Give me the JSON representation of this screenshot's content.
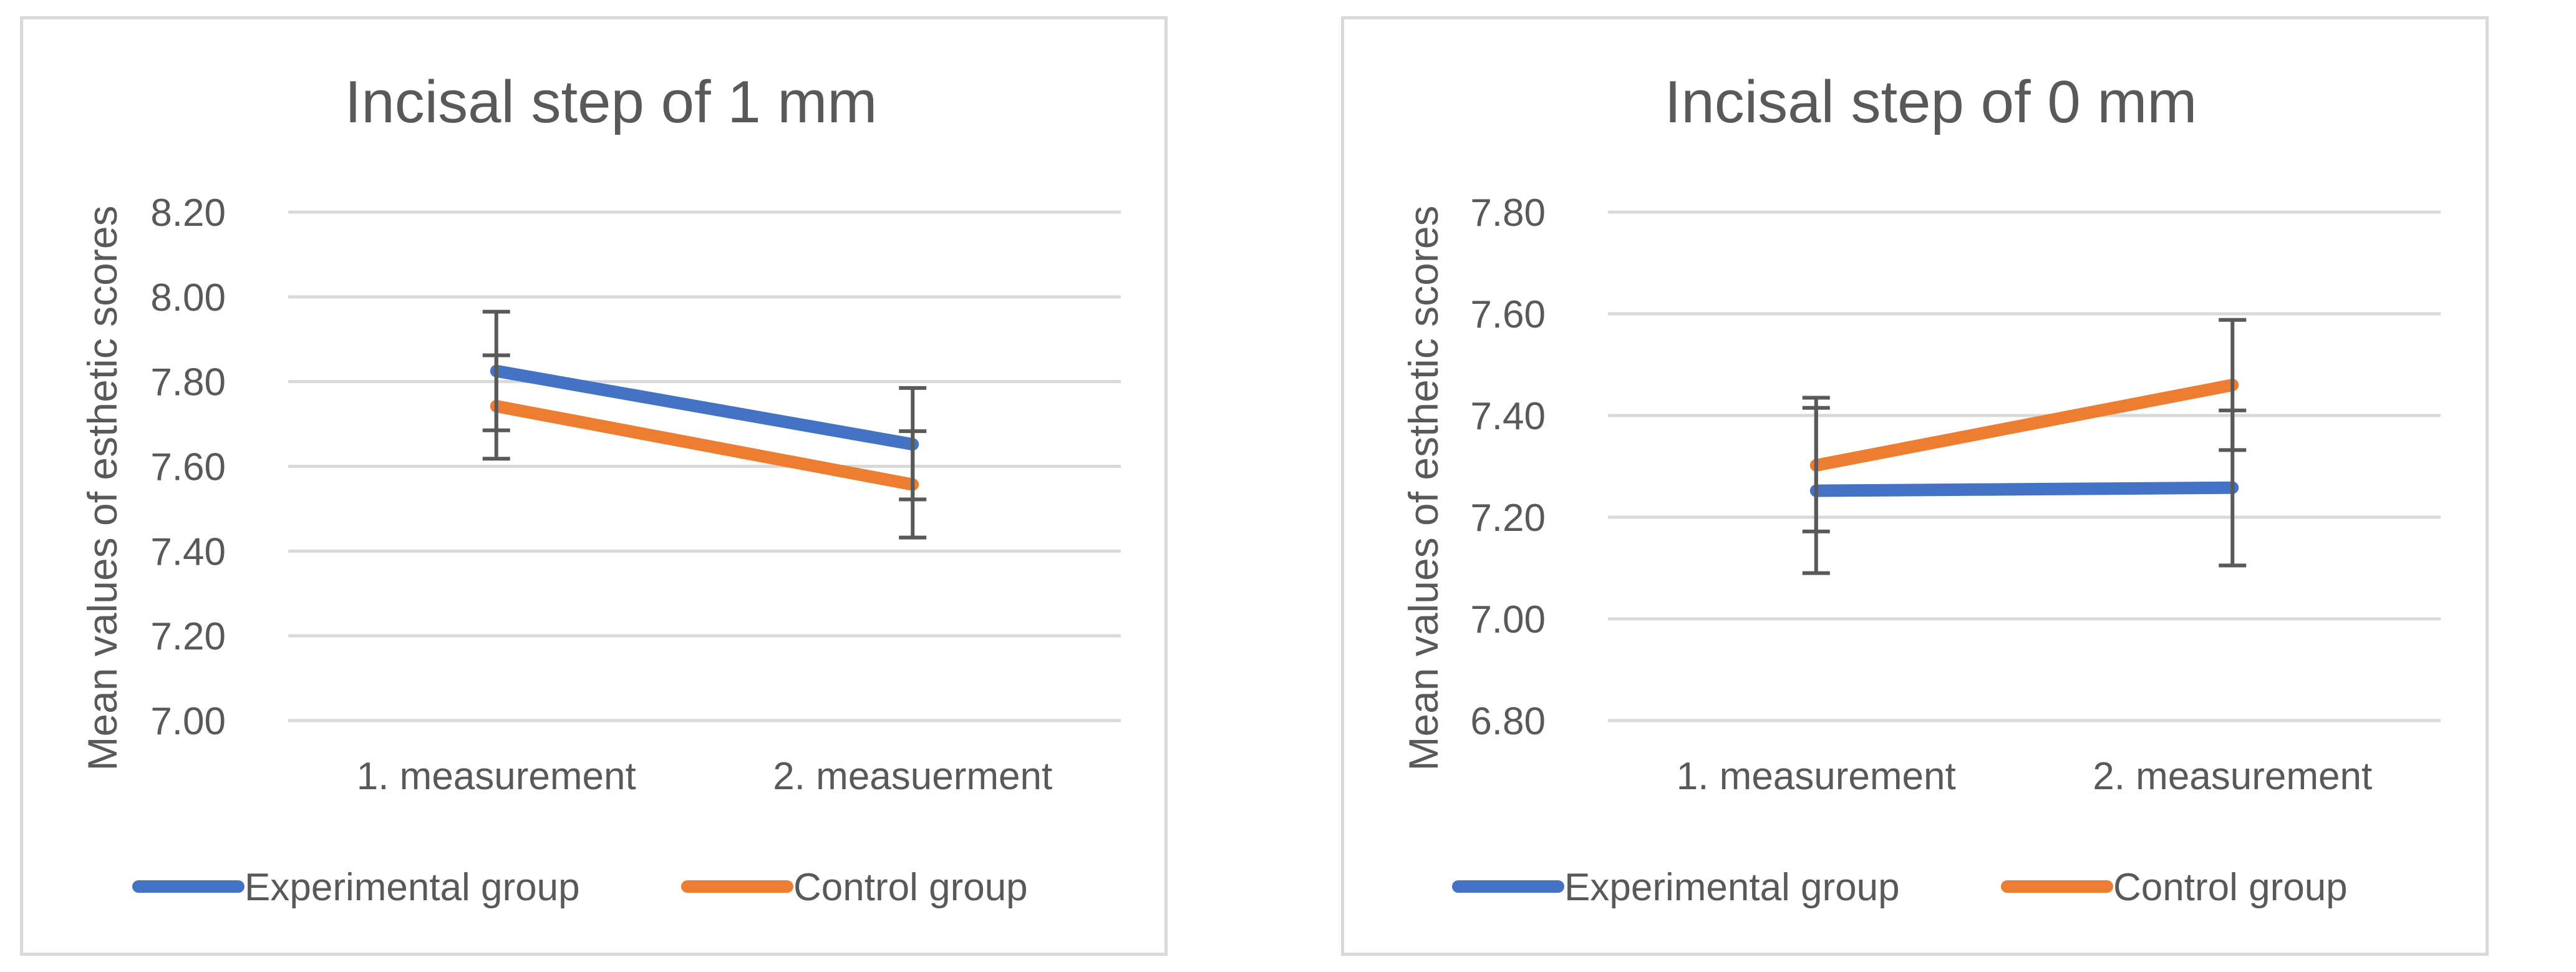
{
  "chart_data": [
    {
      "type": "line",
      "title": "Incisal step of 1 mm",
      "xlabel": "",
      "ylabel": "Mean values of esthetic scores",
      "categories": [
        "1. measurement",
        "2. measuerment"
      ],
      "ylim": [
        7.0,
        8.2
      ],
      "yticks": [
        "7.00",
        "7.20",
        "7.40",
        "7.60",
        "7.80",
        "8.00",
        "8.20"
      ],
      "grid": true,
      "legend": "bottom",
      "series": [
        {
          "name": "Experimental group",
          "color": "#4472c4",
          "values": [
            7.825,
            7.652
          ],
          "err_low": [
            7.685,
            7.522
          ],
          "err_high": [
            7.965,
            7.785
          ]
        },
        {
          "name": "Control group",
          "color": "#ed7d31",
          "values": [
            7.742,
            7.557
          ],
          "err_low": [
            7.618,
            7.432
          ],
          "err_high": [
            7.862,
            7.683
          ]
        }
      ]
    },
    {
      "type": "line",
      "title": "Incisal step of 0 mm",
      "xlabel": "",
      "ylabel": "Mean values of esthetic scores",
      "categories": [
        "1. measurement",
        "2. measurement"
      ],
      "ylim": [
        6.8,
        7.8
      ],
      "yticks": [
        "6.80",
        "7.00",
        "7.20",
        "7.40",
        "7.60",
        "7.80"
      ],
      "grid": true,
      "legend": "bottom",
      "series": [
        {
          "name": "Experimental group",
          "color": "#4472c4",
          "values": [
            7.252,
            7.258
          ],
          "err_low": [
            7.09,
            7.105
          ],
          "err_high": [
            7.415,
            7.41
          ]
        },
        {
          "name": "Control group",
          "color": "#ed7d31",
          "values": [
            7.302,
            7.46
          ],
          "err_low": [
            7.172,
            7.332
          ],
          "err_high": [
            7.435,
            7.588
          ]
        }
      ]
    }
  ]
}
